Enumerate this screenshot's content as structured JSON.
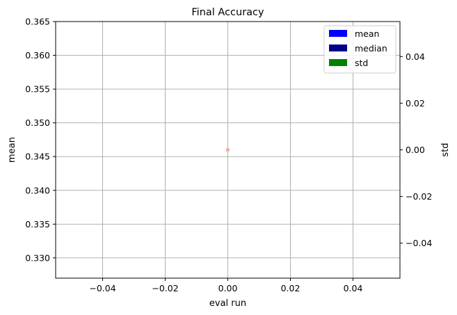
{
  "chart_data": {
    "type": "scatter",
    "title": "Final Accuracy",
    "xlabel": "eval run",
    "ylabel": "mean",
    "y2label": "std",
    "xlim": [
      -0.055,
      0.055
    ],
    "ylim": [
      0.327,
      0.365
    ],
    "y2lim": [
      -0.055,
      0.055
    ],
    "xticks": [
      -0.04,
      -0.02,
      0.0,
      0.02,
      0.04
    ],
    "xtick_labels": [
      "−0.04",
      "−0.02",
      "0.00",
      "0.02",
      "0.04"
    ],
    "yticks": [
      0.33,
      0.335,
      0.34,
      0.345,
      0.35,
      0.355,
      0.36,
      0.365
    ],
    "ytick_labels": [
      "0.330",
      "0.335",
      "0.340",
      "0.345",
      "0.350",
      "0.355",
      "0.360",
      "0.365"
    ],
    "y2ticks": [
      -0.04,
      -0.02,
      0.0,
      0.02,
      0.04
    ],
    "y2tick_labels": [
      "−0.04",
      "−0.02",
      "0.00",
      "0.02",
      "0.04"
    ],
    "grid": true,
    "legend_position": "top-right",
    "legend": [
      {
        "label": "mean",
        "color": "#0000ff"
      },
      {
        "label": "median",
        "color": "#00008b"
      },
      {
        "label": "std",
        "color": "#008000"
      }
    ],
    "points": [
      {
        "x": 0.0,
        "y": 0.346,
        "color": "#f4a6a0"
      }
    ]
  }
}
